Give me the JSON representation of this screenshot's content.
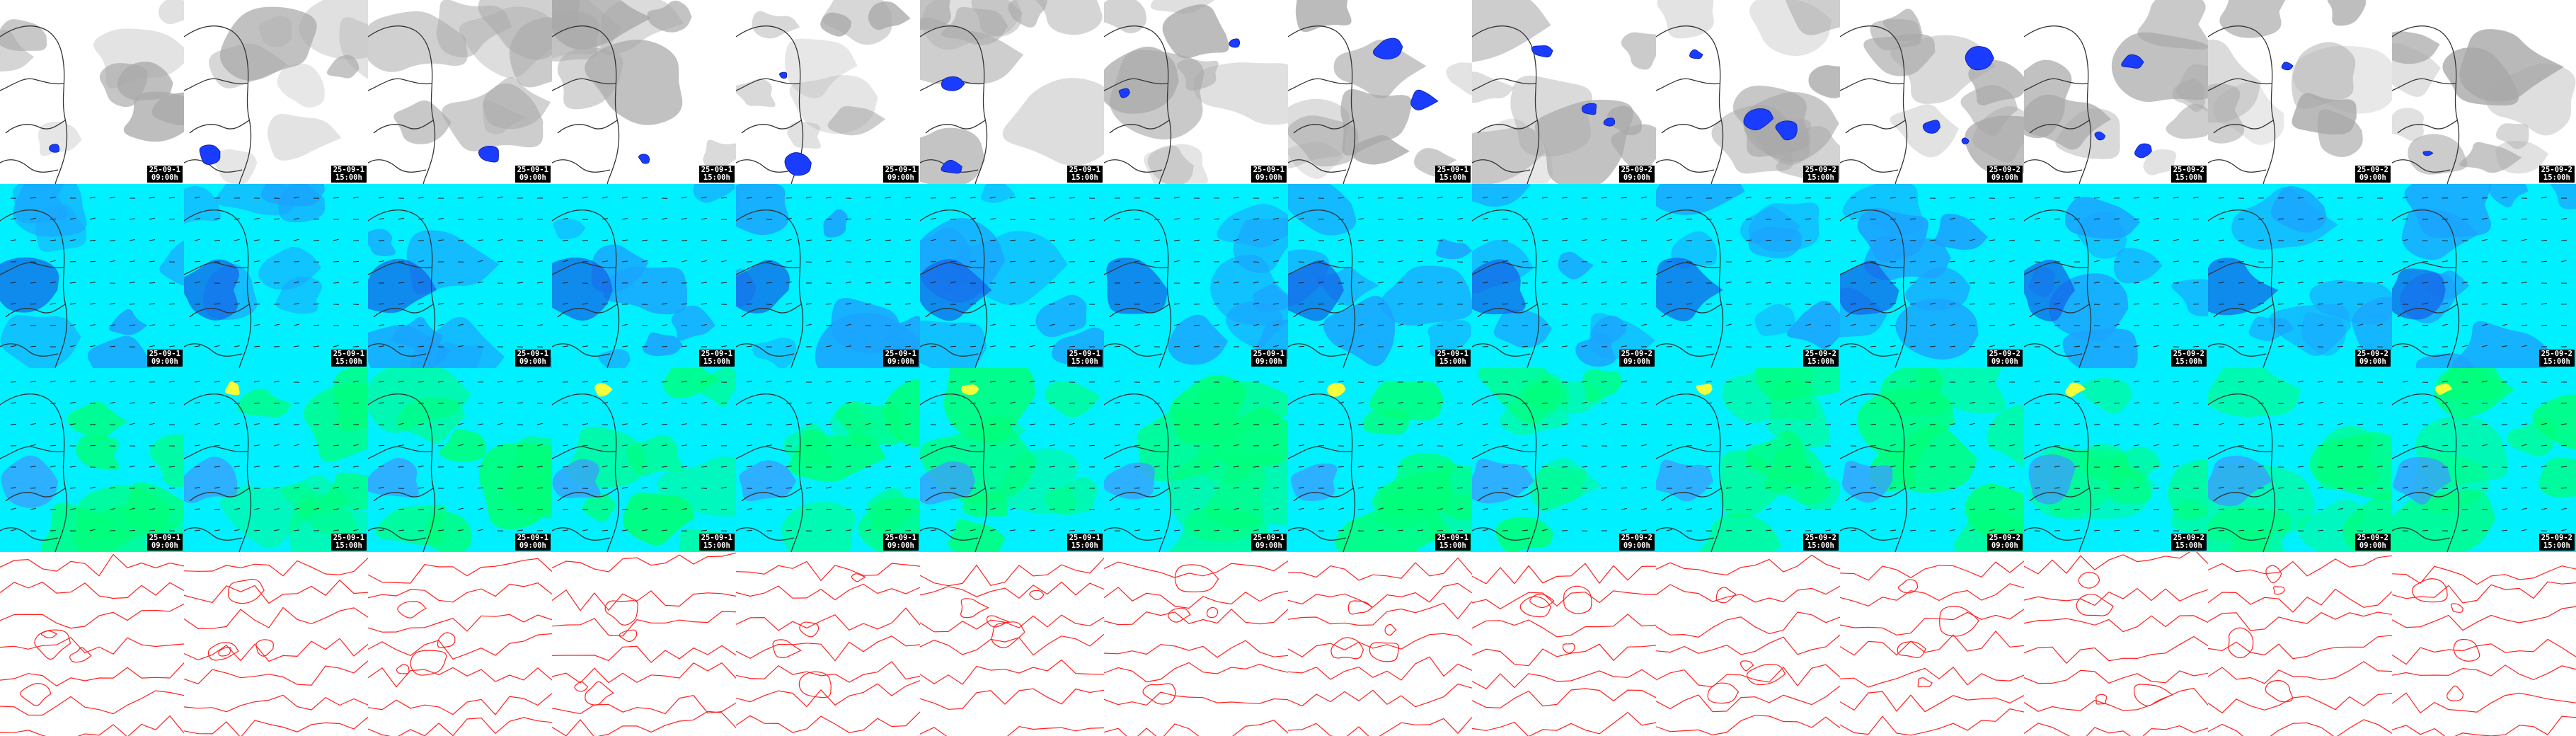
{
  "rows": [
    {
      "id": "cloud-precip",
      "background": "#ffffff",
      "cloud_color": "#a8a8a8",
      "precip_color": "#1a3cff",
      "coast_color": "#333333"
    },
    {
      "id": "humidity-wind",
      "base_color": "#00f0ff",
      "mid_color": "#1ba3ff",
      "deep_color": "#1560e6",
      "coast_color": "#333333"
    },
    {
      "id": "wind-speed",
      "base_color": "#00f0ff",
      "mid_color": "#00ff7a",
      "high_color": "#f4ff3a",
      "low_color": "#3c9bff",
      "coast_color": "#333333"
    },
    {
      "id": "pressure-isobars",
      "background": "#ffffff",
      "line_color": "#ff2020"
    }
  ],
  "frames": [
    {
      "date": "25-09-1",
      "time": "09:00h"
    },
    {
      "date": "25-09-1",
      "time": "15:00h"
    },
    {
      "date": "25-09-1",
      "time": "09:00h"
    },
    {
      "date": "25-09-1",
      "time": "15:00h"
    },
    {
      "date": "25-09-1",
      "time": "09:00h"
    },
    {
      "date": "25-09-1",
      "time": "15:00h"
    },
    {
      "date": "25-09-1",
      "time": "09:00h"
    },
    {
      "date": "25-09-1",
      "time": "15:00h"
    },
    {
      "date": "25-09-2",
      "time": "09:00h"
    },
    {
      "date": "25-09-2",
      "time": "15:00h"
    },
    {
      "date": "25-09-2",
      "time": "09:00h"
    },
    {
      "date": "25-09-2",
      "time": "15:00h"
    },
    {
      "date": "25-09-2",
      "time": "09:00h"
    },
    {
      "date": "25-09-2",
      "time": "15:00h"
    }
  ]
}
